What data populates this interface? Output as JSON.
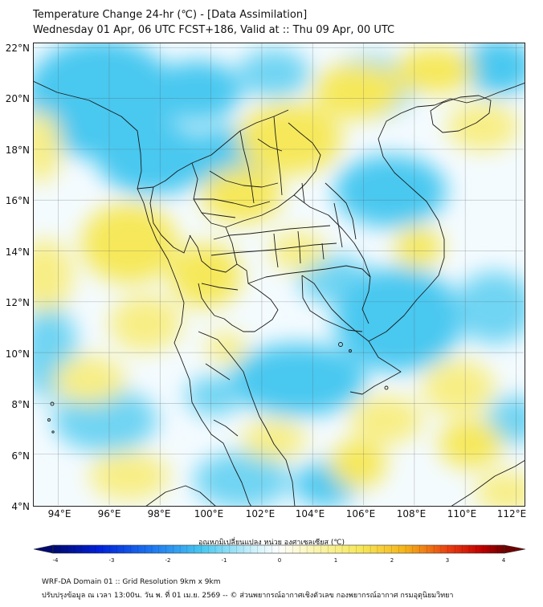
{
  "header": {
    "title_line1": "Temperature Change 24-hr (℃) - [Data Assimilation]",
    "title_line2": "Wednesday 01 Apr, 06 UTC FCST+186, Valid at :: Thu 09 Apr, 00 UTC"
  },
  "map": {
    "lat_labels": [
      "22°N",
      "20°N",
      "18°N",
      "16°N",
      "14°N",
      "12°N",
      "10°N",
      "8°N",
      "6°N",
      "4°N"
    ],
    "lon_labels": [
      "94°E",
      "96°E",
      "98°E",
      "100°E",
      "102°E",
      "104°E",
      "106°E",
      "108°E",
      "110°E",
      "112°E"
    ],
    "extent": {
      "lon_min": 93,
      "lon_max": 112.3,
      "lat_min": 4,
      "lat_max": 22.2
    },
    "gridlines": true,
    "colors": {
      "cold": "#48c8f0",
      "neutral": "#f4fbff",
      "warm": "#f6e85a"
    }
  },
  "colorbar": {
    "title": "อุณหภูมิเปลี่ยนแปลง หน่วย องศาเซลเซียส (℃)",
    "ticks": [
      "-4",
      "-3",
      "-2",
      "-1",
      "0",
      "1",
      "2",
      "3",
      "4"
    ],
    "range": [
      -4,
      4
    ],
    "colors": [
      "#000a6e",
      "#0020d8",
      "#1e78f0",
      "#48c8f0",
      "#c8f0fb",
      "#ffffff",
      "#fbf6b8",
      "#f6e85a",
      "#f5b418",
      "#e83a10",
      "#c00000",
      "#6e0000"
    ]
  },
  "footer": {
    "line1": "WRF-DA Domain 01 :: Grid Resolution 9km x 9km",
    "line2": "ปรับปรุงข้อมูล ณ เวลา 13:00น. วัน พ. ที่ 01 เม.ย. 2569 -- © ส่วนพยากรณ์อากาศเชิงตัวเลข กองพยากรณ์อากาศ กรมอุตุนิยมวิทยา"
  }
}
